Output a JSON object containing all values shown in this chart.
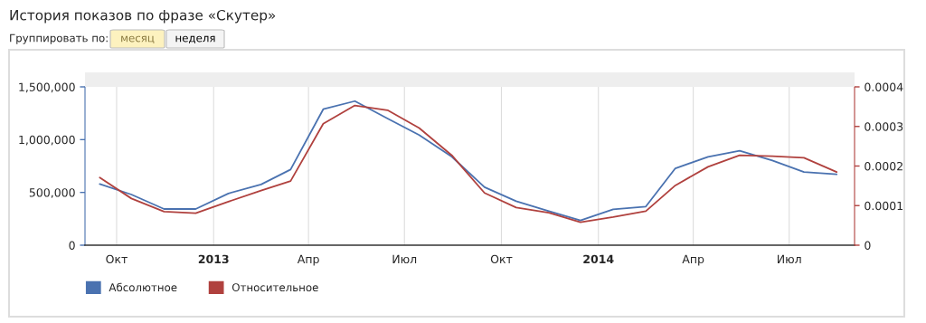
{
  "chart_data": {
    "type": "line",
    "title": "История показов по фразе «Скутер»",
    "annotations": [
      "Группировать по:",
      "месяц",
      "неделя"
    ],
    "x": [
      "2012-09-15",
      "2012-10-15",
      "2012-11-15",
      "2012-12-15",
      "2013-01-15",
      "2013-02-15",
      "2013-03-15",
      "2013-04-15",
      "2013-05-15",
      "2013-06-15",
      "2013-07-15",
      "2013-08-15",
      "2013-09-15",
      "2013-10-15",
      "2013-11-15",
      "2013-12-15",
      "2014-01-15",
      "2014-02-15",
      "2014-03-15",
      "2014-04-15",
      "2014-05-15",
      "2014-06-15",
      "2014-07-15",
      "2014-08-15"
    ],
    "series": [
      {
        "name": "Абсолютное",
        "color": "#4a72b0",
        "values": [
          580000,
          480000,
          343000,
          343000,
          490000,
          575000,
          717000,
          1288000,
          1365000,
          1200000,
          1043000,
          837000,
          550000,
          417000,
          323000,
          234000,
          340000,
          366000,
          728000,
          837000,
          894000,
          803000,
          694000,
          671000
        ]
      },
      {
        "name": "Относительное",
        "color": "#b0413e",
        "axis": "y2",
        "values": [
          0.000171,
          0.000118,
          8.5e-05,
          8.1e-05,
          0.00011,
          0.000138,
          0.000162,
          0.000307,
          0.000353,
          0.000341,
          0.000296,
          0.000227,
          0.000132,
          9.5e-05,
          8.2e-05,
          5.8e-05,
          7.1e-05,
          8.6e-05,
          0.000151,
          0.000198,
          0.000227,
          0.000225,
          0.000221,
          0.000185
        ]
      }
    ],
    "xlim": [
      "2012-09-01",
      "2014-09-01"
    ],
    "xticks": [
      {
        "value": "2012-10-01",
        "label": "Окт"
      },
      {
        "value": "2013-01-01",
        "label": "2013"
      },
      {
        "value": "2013-04-01",
        "label": "Апр"
      },
      {
        "value": "2013-07-01",
        "label": "Июл"
      },
      {
        "value": "2013-10-01",
        "label": "Окт"
      },
      {
        "value": "2014-01-01",
        "label": "2014"
      },
      {
        "value": "2014-04-01",
        "label": "Апр"
      },
      {
        "value": "2014-07-01",
        "label": "Июл"
      }
    ],
    "ylim": [
      0,
      1500000
    ],
    "yticks": [
      0,
      {
        "value": 500000,
        "label": "500,000"
      },
      {
        "value": 1000000,
        "label": "1,000,000"
      },
      {
        "value": 1500000,
        "label": "1,500,000"
      }
    ],
    "y2lim": [
      0,
      0.0004
    ],
    "y2ticks": [
      0,
      0.0001,
      0.0002,
      0.0003,
      0.0004
    ],
    "grid": "x",
    "legend": "bottom left",
    "marker": "none",
    "line_style": "solid"
  }
}
